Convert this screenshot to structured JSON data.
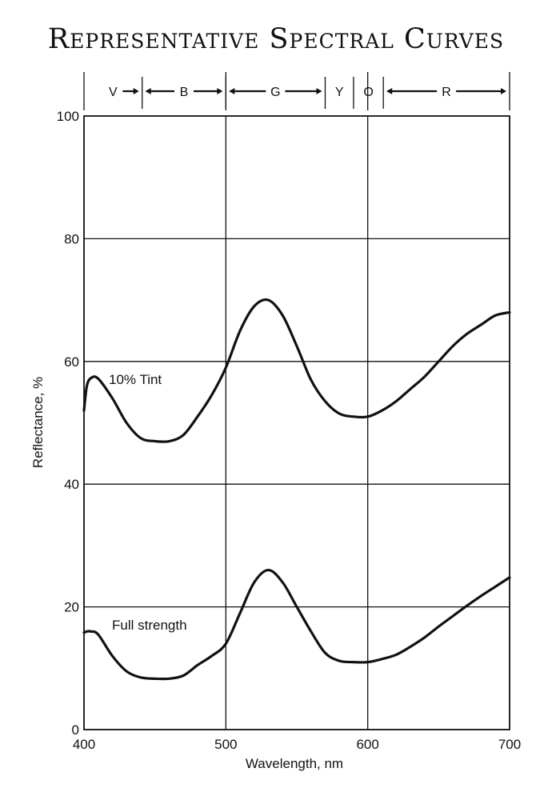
{
  "chart_data": {
    "type": "line",
    "title": "Representative Spectral Curves",
    "xlabel": "Wavelength, nm",
    "ylabel": "Reflectance, %",
    "xlim": [
      400,
      700
    ],
    "ylim": [
      0,
      100
    ],
    "x_ticks": [
      "400",
      "500",
      "600",
      "700"
    ],
    "y_ticks": [
      "0",
      "20",
      "40",
      "60",
      "80",
      "100"
    ],
    "grid": true,
    "color_bands": [
      {
        "label": "V",
        "from": 400,
        "to": 441
      },
      {
        "label": "B",
        "from": 441,
        "to": 500
      },
      {
        "label": "G",
        "from": 500,
        "to": 570
      },
      {
        "label": "Y",
        "from": 570,
        "to": 590
      },
      {
        "label": "O",
        "from": 590,
        "to": 611
      },
      {
        "label": "R",
        "from": 611,
        "to": 700
      }
    ],
    "series": [
      {
        "name": "10% Tint",
        "x": [
          400,
          402,
          405,
          410,
          420,
          430,
          440,
          450,
          460,
          470,
          480,
          490,
          500,
          510,
          520,
          530,
          540,
          550,
          560,
          570,
          580,
          590,
          600,
          610,
          620,
          630,
          640,
          650,
          660,
          670,
          680,
          690,
          700
        ],
        "y": [
          52,
          56,
          57.3,
          57.2,
          54,
          50,
          47.5,
          47,
          47,
          48,
          51,
          54.5,
          59,
          65,
          69,
          70,
          67.5,
          62.5,
          57,
          53.5,
          51.5,
          51,
          51,
          52,
          53.5,
          55.5,
          57.5,
          60,
          62.5,
          64.5,
          66,
          67.5,
          68
        ]
      },
      {
        "name": "Full strength",
        "x": [
          400,
          402,
          405,
          410,
          420,
          430,
          440,
          450,
          460,
          470,
          480,
          490,
          500,
          510,
          520,
          530,
          540,
          550,
          560,
          570,
          580,
          590,
          600,
          610,
          620,
          630,
          640,
          650,
          660,
          670,
          680,
          690,
          700
        ],
        "y": [
          15.8,
          16,
          16,
          15.5,
          12,
          9.5,
          8.5,
          8.3,
          8.3,
          8.8,
          10.5,
          12,
          14,
          19,
          24,
          26,
          24,
          20,
          16,
          12.5,
          11.2,
          11,
          11,
          11.5,
          12.2,
          13.5,
          15,
          16.8,
          18.5,
          20.2,
          21.8,
          23.3,
          24.8
        ]
      }
    ]
  }
}
